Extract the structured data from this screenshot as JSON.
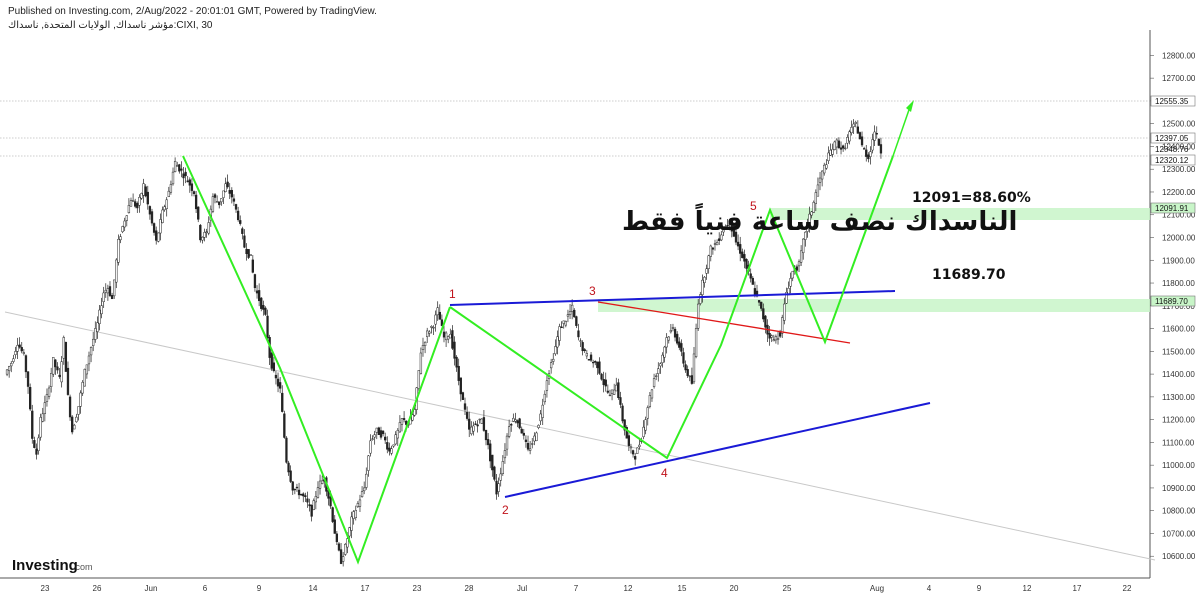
{
  "header": {
    "published": "Published on Investing.com, 2/Aug/2022 - 20:01:01 GMT, Powered by TradingView.",
    "symbol": "مؤشر ناسداك, الولايات المتحدة, ناسداك:CIXI, 30"
  },
  "logo": {
    "main": "Investing",
    "suffix": ".com"
  },
  "annotation": {
    "title_ar": "الناسداك نصف ساعة فنياً فقط",
    "target_text": "12091=88.60%",
    "level_text": "11689.70"
  },
  "price_boxes": [
    "12555.35",
    "12397.05",
    "12348.76",
    "12320.12",
    "12091.91",
    "11689.70"
  ],
  "colors": {
    "up": "#222222",
    "down": "#222222",
    "zigzag": "#33ee22",
    "trend": "#1a1ad6",
    "red_line": "#e01818",
    "zone": "#c8f5c8"
  },
  "chart_data": {
    "type": "candlestick",
    "title": "",
    "y_axis": {
      "range": [
        10500,
        12850
      ],
      "tick_step": 100
    },
    "x_ticks": [
      "23",
      "26",
      "Jun",
      "6",
      "9",
      "14",
      "17",
      "23",
      "28",
      "Jul",
      "7",
      "12",
      "15",
      "20",
      "25",
      "Aug",
      "4",
      "9",
      "12",
      "17",
      "22"
    ],
    "price_path": [
      [
        0,
        11400
      ],
      [
        3,
        11450
      ],
      [
        6,
        11540
      ],
      [
        9,
        11480
      ],
      [
        11,
        11350
      ],
      [
        13,
        11120
      ],
      [
        15,
        11050
      ],
      [
        17,
        11200
      ],
      [
        20,
        11300
      ],
      [
        23,
        11460
      ],
      [
        26,
        11380
      ],
      [
        28,
        11550
      ],
      [
        30,
        11300
      ],
      [
        32,
        11150
      ],
      [
        35,
        11260
      ],
      [
        38,
        11410
      ],
      [
        41,
        11520
      ],
      [
        44,
        11620
      ],
      [
        47,
        11760
      ],
      [
        49,
        11780
      ],
      [
        51,
        11730
      ],
      [
        54,
        11980
      ],
      [
        57,
        12080
      ],
      [
        60,
        12170
      ],
      [
        63,
        12130
      ],
      [
        66,
        12230
      ],
      [
        69,
        12100
      ],
      [
        72,
        11980
      ],
      [
        75,
        12110
      ],
      [
        78,
        12200
      ],
      [
        81,
        12330
      ],
      [
        84,
        12290
      ],
      [
        87,
        12250
      ],
      [
        90,
        12200
      ],
      [
        93,
        12000
      ],
      [
        96,
        12020
      ],
      [
        99,
        12180
      ],
      [
        102,
        12150
      ],
      [
        105,
        12230
      ],
      [
        108,
        12180
      ],
      [
        111,
        12090
      ],
      [
        114,
        11960
      ],
      [
        117,
        11910
      ],
      [
        119,
        11780
      ],
      [
        124,
        11650
      ],
      [
        126,
        11480
      ],
      [
        128,
        11400
      ],
      [
        131,
        11330
      ],
      [
        134,
        11020
      ],
      [
        137,
        10900
      ],
      [
        140,
        10880
      ],
      [
        143,
        10850
      ],
      [
        146,
        10790
      ],
      [
        149,
        10910
      ],
      [
        152,
        10940
      ],
      [
        155,
        10820
      ],
      [
        158,
        10650
      ],
      [
        160,
        10580
      ],
      [
        162,
        10640
      ],
      [
        165,
        10760
      ],
      [
        168,
        10830
      ],
      [
        171,
        10900
      ],
      [
        174,
        11110
      ],
      [
        177,
        11150
      ],
      [
        180,
        11130
      ],
      [
        183,
        11060
      ],
      [
        186,
        11120
      ],
      [
        189,
        11200
      ],
      [
        192,
        11180
      ],
      [
        195,
        11240
      ],
      [
        198,
        11500
      ],
      [
        201,
        11580
      ],
      [
        204,
        11620
      ],
      [
        206,
        11680
      ],
      [
        209,
        11560
      ],
      [
        212,
        11580
      ],
      [
        215,
        11420
      ],
      [
        218,
        11280
      ],
      [
        221,
        11150
      ],
      [
        224,
        11180
      ],
      [
        227,
        11200
      ],
      [
        230,
        11080
      ],
      [
        232,
        10980
      ],
      [
        234,
        10880
      ],
      [
        237,
        11020
      ],
      [
        240,
        11180
      ],
      [
        243,
        11210
      ],
      [
        246,
        11150
      ],
      [
        249,
        11060
      ],
      [
        252,
        11120
      ],
      [
        255,
        11220
      ],
      [
        258,
        11380
      ],
      [
        261,
        11480
      ],
      [
        264,
        11600
      ],
      [
        267,
        11640
      ],
      [
        270,
        11690
      ],
      [
        273,
        11560
      ],
      [
        276,
        11490
      ],
      [
        279,
        11460
      ],
      [
        282,
        11440
      ],
      [
        285,
        11360
      ],
      [
        288,
        11300
      ],
      [
        291,
        11360
      ],
      [
        294,
        11200
      ],
      [
        297,
        11080
      ],
      [
        300,
        11040
      ],
      [
        303,
        11120
      ],
      [
        306,
        11260
      ],
      [
        309,
        11380
      ],
      [
        312,
        11450
      ],
      [
        315,
        11560
      ],
      [
        318,
        11600
      ],
      [
        321,
        11520
      ],
      [
        324,
        11420
      ],
      [
        327,
        11360
      ],
      [
        330,
        11720
      ],
      [
        333,
        11840
      ],
      [
        336,
        11950
      ],
      [
        339,
        11980
      ],
      [
        342,
        12040
      ],
      [
        345,
        12070
      ],
      [
        348,
        11980
      ],
      [
        351,
        11920
      ],
      [
        354,
        11840
      ],
      [
        357,
        11760
      ],
      [
        360,
        11680
      ],
      [
        363,
        11580
      ],
      [
        366,
        11550
      ],
      [
        369,
        11580
      ],
      [
        372,
        11760
      ],
      [
        375,
        11850
      ],
      [
        378,
        11880
      ],
      [
        381,
        12030
      ],
      [
        384,
        12120
      ],
      [
        387,
        12230
      ],
      [
        390,
        12310
      ],
      [
        393,
        12380
      ],
      [
        396,
        12420
      ],
      [
        399,
        12380
      ],
      [
        402,
        12460
      ],
      [
        405,
        12500
      ],
      [
        408,
        12400
      ],
      [
        411,
        12350
      ],
      [
        414,
        12470
      ],
      [
        417,
        12380
      ]
    ]
  }
}
